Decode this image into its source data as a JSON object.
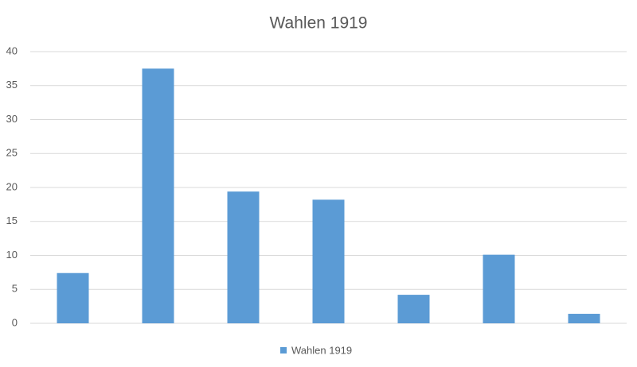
{
  "chart_data": {
    "type": "bar",
    "title": "Wahlen 1919",
    "categories": [
      null,
      null,
      null,
      null,
      null,
      null,
      null
    ],
    "series": [
      {
        "name": "Wahlen 1919",
        "color": "#5b9bd5",
        "values": [
          7.4,
          37.5,
          19.4,
          18.2,
          4.2,
          10.1,
          1.4
        ]
      }
    ],
    "ylim": [
      0,
      40
    ],
    "yticks": [
      0,
      5,
      10,
      15,
      20,
      25,
      30,
      35,
      40
    ],
    "grid": true,
    "legend": "bottom"
  }
}
